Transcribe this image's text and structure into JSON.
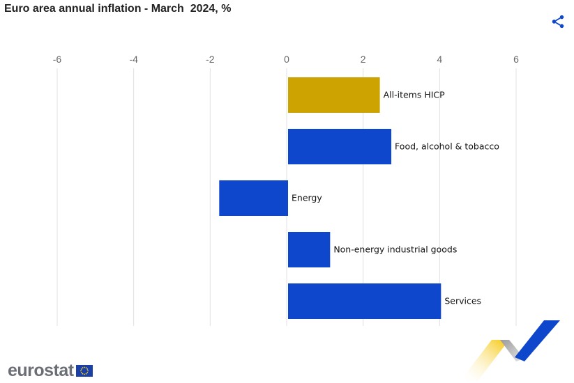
{
  "title": "Euro area annual inflation - March  2024, %",
  "logo": {
    "text": "eurostat",
    "flag": "eu-flag-icon"
  },
  "icons": {
    "share": "share-icon"
  },
  "colors": {
    "highlight": "#cca300",
    "bar": "#0e47cb",
    "grid": "#e0e0e0",
    "axis_text": "#666666"
  },
  "chart_data": {
    "type": "bar",
    "orientation": "horizontal",
    "title": "Euro area annual inflation - March  2024, %",
    "categories": [
      "All-items HICP",
      "Food, alcohol & tobacco",
      "Energy",
      "Non-energy industrial goods",
      "Services"
    ],
    "values": [
      2.4,
      2.7,
      -1.8,
      1.1,
      4.0
    ],
    "highlight_index": 0,
    "xlim": [
      -6,
      6
    ],
    "xticks": [
      -6,
      -4,
      -2,
      0,
      2,
      4,
      6
    ],
    "axis_position": "top",
    "grid": true,
    "legend": "none"
  }
}
